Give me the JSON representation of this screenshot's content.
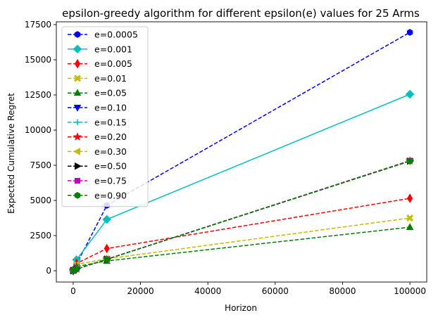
{
  "chart_data": {
    "type": "line",
    "title": "epsilon-greedy algorithm for different epsilon(e) values for 25 Arms",
    "xlabel": "Horizon",
    "ylabel": "Expected Cumulative Regret",
    "xlim": [
      -5000,
      105000
    ],
    "ylim": [
      -800,
      17700
    ],
    "x_ticks": [
      0,
      20000,
      40000,
      60000,
      80000,
      100000
    ],
    "y_ticks": [
      0,
      2500,
      5000,
      7500,
      10000,
      12500,
      15000,
      17500
    ],
    "grid": false,
    "legend_position": "upper-left",
    "x": [
      10,
      100,
      1000,
      10000,
      100000
    ],
    "series": [
      {
        "name": "e=0.0005",
        "color": "#0000ff",
        "linestyle": "dashed",
        "marker": "hexagon",
        "values": [
          5,
          50,
          470,
          4650,
          16950
        ]
      },
      {
        "name": "e=0.001",
        "color": "#00bfbf",
        "linestyle": "solid",
        "marker": "diamond",
        "values": [
          8,
          80,
          780,
          3650,
          12550
        ]
      },
      {
        "name": "e=0.005",
        "color": "#ff0000",
        "linestyle": "dashed",
        "marker": "thin-diamond",
        "values": [
          5,
          50,
          520,
          1580,
          5150
        ]
      },
      {
        "name": "e=0.01",
        "color": "#bfbf00",
        "linestyle": "dashed",
        "marker": "x-filled",
        "values": [
          5,
          50,
          450,
          850,
          3750
        ]
      },
      {
        "name": "e=0.05",
        "color": "#008000",
        "linestyle": "dashed",
        "marker": "triangle-up",
        "values": [
          5,
          40,
          300,
          700,
          3100
        ]
      },
      {
        "name": "e=0.10",
        "color": "#0000ff",
        "linestyle": "dashed",
        "marker": "triangle-down",
        "values": [
          5,
          20,
          120,
          820,
          7800
        ]
      },
      {
        "name": "e=0.15",
        "color": "#00bfbf",
        "linestyle": "dashed",
        "marker": "plus",
        "values": [
          5,
          20,
          120,
          820,
          7800
        ]
      },
      {
        "name": "e=0.20",
        "color": "#ff0000",
        "linestyle": "dashed",
        "marker": "star",
        "values": [
          5,
          20,
          120,
          820,
          7800
        ]
      },
      {
        "name": "e=0.30",
        "color": "#bfbf00",
        "linestyle": "dashed",
        "marker": "triangle-left",
        "values": [
          5,
          20,
          120,
          820,
          7800
        ]
      },
      {
        "name": "e=0.50",
        "color": "#000000",
        "linestyle": "dashed",
        "marker": "triangle-right",
        "values": [
          5,
          20,
          120,
          820,
          7800
        ]
      },
      {
        "name": "e=0.75",
        "color": "#bf00bf",
        "linestyle": "dashed",
        "marker": "square",
        "values": [
          5,
          20,
          120,
          820,
          7830
        ]
      },
      {
        "name": "e=0.90",
        "color": "#008000",
        "linestyle": "dashed",
        "marker": "hexagon",
        "values": [
          5,
          20,
          120,
          820,
          7800
        ]
      }
    ]
  }
}
